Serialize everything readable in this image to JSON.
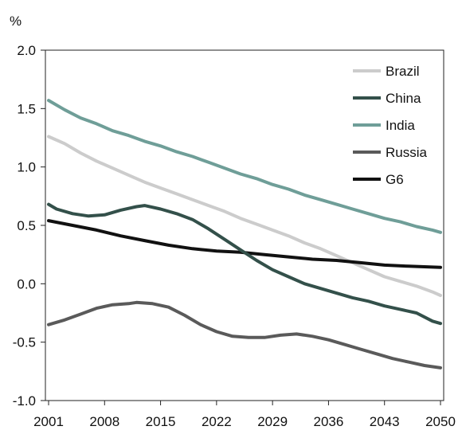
{
  "chart_data": {
    "type": "line",
    "unit_label": "%",
    "xlim": [
      2001,
      2050
    ],
    "ylim": [
      -1.0,
      2.0
    ],
    "x_ticks": [
      "2001",
      "2008",
      "2015",
      "2022",
      "2029",
      "2036",
      "2043",
      "2050"
    ],
    "y_ticks": [
      "2.0",
      "1.5",
      "1.0",
      "0.5",
      "0.0",
      "-0.5",
      "-1.0"
    ],
    "grid": false,
    "legend_position": "top-right",
    "series": [
      {
        "name": "Brazil",
        "color": "#cccccc",
        "points": [
          [
            2001,
            1.26
          ],
          [
            2003,
            1.2
          ],
          [
            2005,
            1.12
          ],
          [
            2007,
            1.05
          ],
          [
            2009,
            0.99
          ],
          [
            2011,
            0.93
          ],
          [
            2013,
            0.87
          ],
          [
            2015,
            0.82
          ],
          [
            2017,
            0.77
          ],
          [
            2019,
            0.72
          ],
          [
            2021,
            0.67
          ],
          [
            2023,
            0.62
          ],
          [
            2025,
            0.56
          ],
          [
            2027,
            0.51
          ],
          [
            2029,
            0.46
          ],
          [
            2031,
            0.41
          ],
          [
            2033,
            0.35
          ],
          [
            2035,
            0.3
          ],
          [
            2037,
            0.24
          ],
          [
            2039,
            0.18
          ],
          [
            2041,
            0.12
          ],
          [
            2043,
            0.06
          ],
          [
            2045,
            0.02
          ],
          [
            2047,
            -0.02
          ],
          [
            2049,
            -0.07
          ],
          [
            2050,
            -0.1
          ]
        ]
      },
      {
        "name": "China",
        "color": "#33504a",
        "points": [
          [
            2001,
            0.68
          ],
          [
            2002,
            0.64
          ],
          [
            2004,
            0.6
          ],
          [
            2006,
            0.58
          ],
          [
            2008,
            0.59
          ],
          [
            2010,
            0.63
          ],
          [
            2012,
            0.66
          ],
          [
            2013,
            0.67
          ],
          [
            2015,
            0.64
          ],
          [
            2017,
            0.6
          ],
          [
            2019,
            0.55
          ],
          [
            2021,
            0.47
          ],
          [
            2023,
            0.38
          ],
          [
            2025,
            0.29
          ],
          [
            2027,
            0.2
          ],
          [
            2029,
            0.12
          ],
          [
            2031,
            0.06
          ],
          [
            2033,
            0.0
          ],
          [
            2035,
            -0.04
          ],
          [
            2037,
            -0.08
          ],
          [
            2039,
            -0.12
          ],
          [
            2041,
            -0.15
          ],
          [
            2043,
            -0.19
          ],
          [
            2045,
            -0.22
          ],
          [
            2047,
            -0.25
          ],
          [
            2049,
            -0.32
          ],
          [
            2050,
            -0.34
          ]
        ]
      },
      {
        "name": "India",
        "color": "#6f9e98",
        "points": [
          [
            2001,
            1.57
          ],
          [
            2003,
            1.49
          ],
          [
            2005,
            1.42
          ],
          [
            2007,
            1.37
          ],
          [
            2009,
            1.31
          ],
          [
            2011,
            1.27
          ],
          [
            2013,
            1.22
          ],
          [
            2015,
            1.18
          ],
          [
            2017,
            1.13
          ],
          [
            2019,
            1.09
          ],
          [
            2021,
            1.04
          ],
          [
            2023,
            0.99
          ],
          [
            2025,
            0.94
          ],
          [
            2027,
            0.9
          ],
          [
            2029,
            0.85
          ],
          [
            2031,
            0.81
          ],
          [
            2033,
            0.76
          ],
          [
            2035,
            0.72
          ],
          [
            2037,
            0.68
          ],
          [
            2039,
            0.64
          ],
          [
            2041,
            0.6
          ],
          [
            2043,
            0.56
          ],
          [
            2045,
            0.53
          ],
          [
            2047,
            0.49
          ],
          [
            2049,
            0.46
          ],
          [
            2050,
            0.44
          ]
        ]
      },
      {
        "name": "Russia",
        "color": "#5a5a5a",
        "points": [
          [
            2001,
            -0.35
          ],
          [
            2003,
            -0.31
          ],
          [
            2005,
            -0.26
          ],
          [
            2007,
            -0.21
          ],
          [
            2009,
            -0.18
          ],
          [
            2011,
            -0.17
          ],
          [
            2012,
            -0.16
          ],
          [
            2014,
            -0.17
          ],
          [
            2016,
            -0.2
          ],
          [
            2018,
            -0.27
          ],
          [
            2020,
            -0.35
          ],
          [
            2022,
            -0.41
          ],
          [
            2024,
            -0.45
          ],
          [
            2026,
            -0.46
          ],
          [
            2028,
            -0.46
          ],
          [
            2030,
            -0.44
          ],
          [
            2032,
            -0.43
          ],
          [
            2034,
            -0.45
          ],
          [
            2036,
            -0.48
          ],
          [
            2038,
            -0.52
          ],
          [
            2040,
            -0.56
          ],
          [
            2042,
            -0.6
          ],
          [
            2044,
            -0.64
          ],
          [
            2046,
            -0.67
          ],
          [
            2048,
            -0.7
          ],
          [
            2050,
            -0.72
          ]
        ]
      },
      {
        "name": "G6",
        "color": "#111111",
        "points": [
          [
            2001,
            0.54
          ],
          [
            2004,
            0.5
          ],
          [
            2007,
            0.46
          ],
          [
            2010,
            0.41
          ],
          [
            2013,
            0.37
          ],
          [
            2016,
            0.33
          ],
          [
            2019,
            0.3
          ],
          [
            2022,
            0.28
          ],
          [
            2025,
            0.27
          ],
          [
            2028,
            0.25
          ],
          [
            2031,
            0.23
          ],
          [
            2034,
            0.21
          ],
          [
            2037,
            0.2
          ],
          [
            2040,
            0.18
          ],
          [
            2043,
            0.16
          ],
          [
            2046,
            0.15
          ],
          [
            2050,
            0.14
          ]
        ]
      }
    ]
  }
}
